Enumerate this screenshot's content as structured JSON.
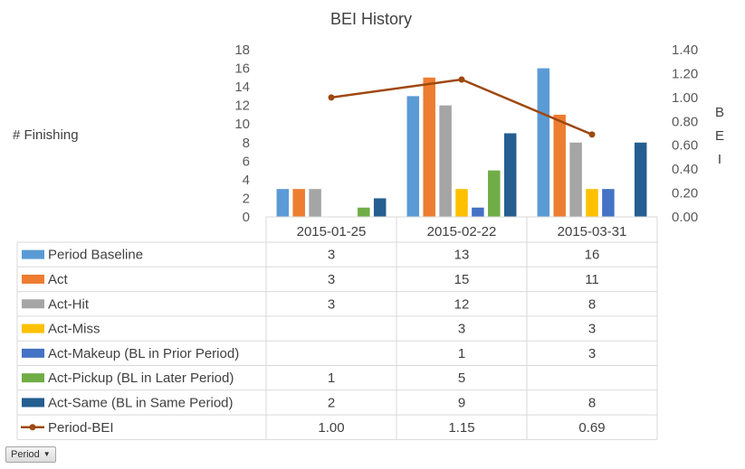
{
  "chart_data": {
    "type": "bar",
    "title": "BEI History",
    "ylabel": "# Finishing",
    "y2label": "BEI",
    "ylim": [
      0,
      18
    ],
    "y2lim": [
      0,
      1.4
    ],
    "yticks": [
      "0",
      "2",
      "4",
      "6",
      "8",
      "10",
      "12",
      "14",
      "16",
      "18"
    ],
    "y2ticks": [
      "0.00",
      "0.20",
      "0.40",
      "0.60",
      "0.80",
      "1.00",
      "1.20",
      "1.40"
    ],
    "categories": [
      "2015-01-25",
      "2015-02-22",
      "2015-03-31"
    ],
    "series": [
      {
        "name": "Period Baseline",
        "color": "#5B9BD5",
        "values": [
          3,
          13,
          16
        ]
      },
      {
        "name": "Act",
        "color": "#ED7D31",
        "values": [
          3,
          15,
          11
        ]
      },
      {
        "name": "Act-Hit",
        "color": "#A5A5A5",
        "values": [
          3,
          12,
          8
        ]
      },
      {
        "name": "Act-Miss",
        "color": "#FFC000",
        "values": [
          null,
          3,
          3
        ]
      },
      {
        "name": "Act-Makeup (BL in Prior Period)",
        "color": "#4472C4",
        "values": [
          null,
          1,
          3
        ]
      },
      {
        "name": "Act-Pickup (BL in Later Period)",
        "color": "#70AD47",
        "values": [
          1,
          5,
          null
        ]
      },
      {
        "name": "Act-Same (BL in Same Period)",
        "color": "#255E91",
        "values": [
          2,
          9,
          8
        ]
      }
    ],
    "line_series": {
      "name": "Period-BEI",
      "color": "#9E480E",
      "axis": "secondary",
      "values": [
        1.0,
        1.15,
        0.69
      ],
      "labels": [
        "1.00",
        "1.15",
        "0.69"
      ]
    },
    "data_table": true,
    "grid": false
  },
  "filter_button": {
    "label": "Period"
  }
}
